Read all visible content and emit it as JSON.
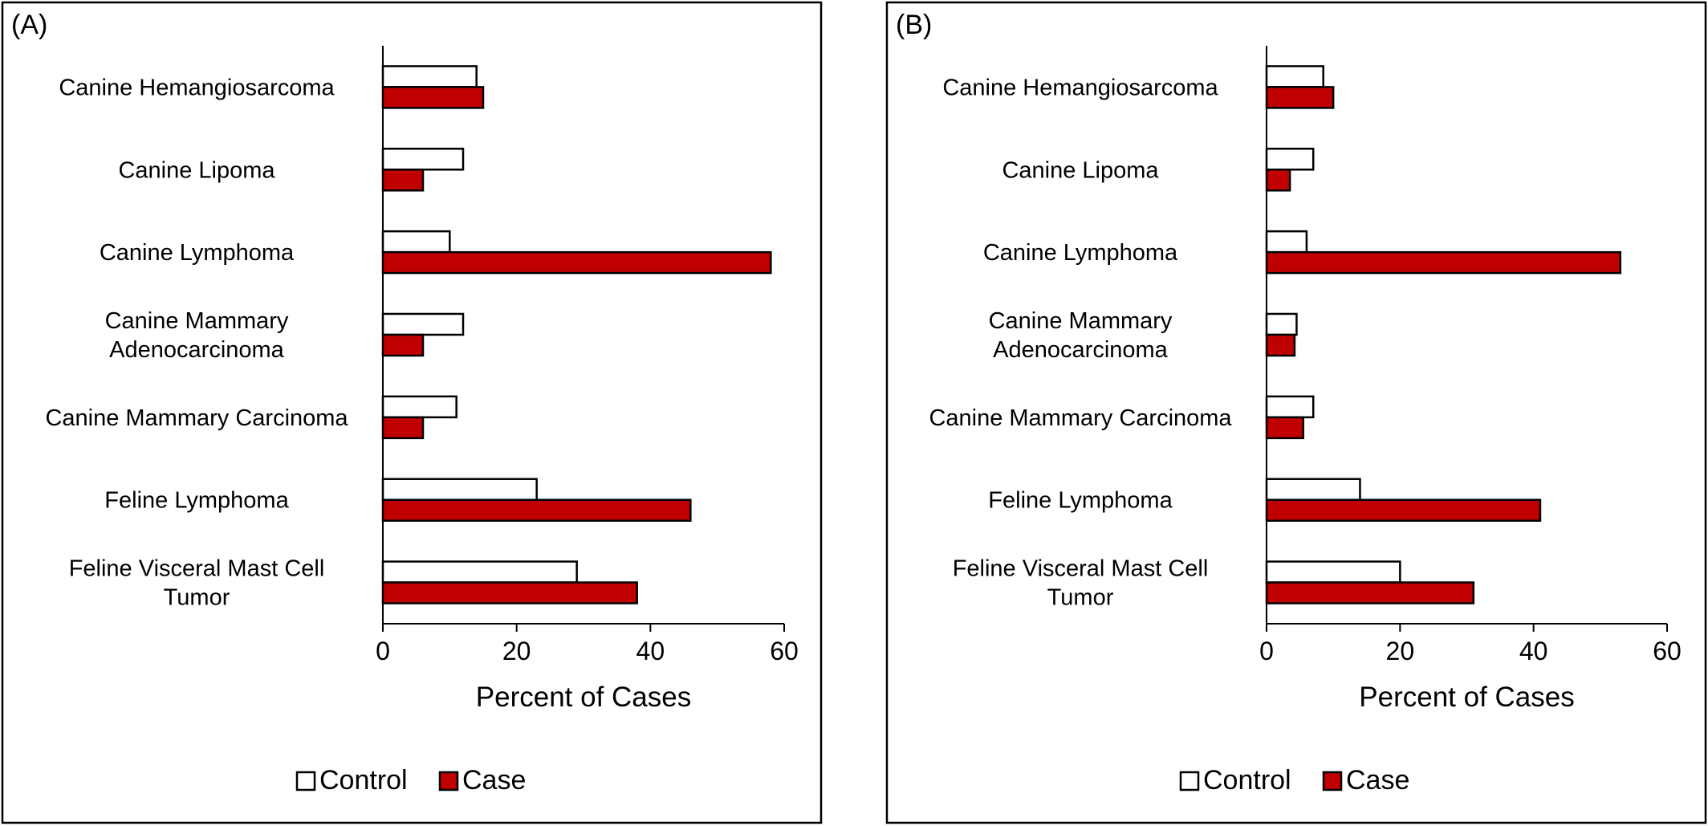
{
  "chart_data": [
    {
      "type": "bar",
      "orientation": "horizontal",
      "panel_label": "(A)",
      "categories": [
        [
          "Canine Hemangiosarcoma"
        ],
        [
          "Canine Lipoma"
        ],
        [
          "Canine Lymphoma"
        ],
        [
          "Canine Mammary",
          "Adenocarcinoma"
        ],
        [
          "Canine Mammary Carcinoma"
        ],
        [
          "Feline Lymphoma"
        ],
        [
          "Feline Visceral Mast Cell",
          "Tumor"
        ]
      ],
      "series": [
        {
          "name": "Control",
          "color": "#ffffff",
          "values": [
            14,
            12,
            10,
            12,
            11,
            23,
            29
          ]
        },
        {
          "name": "Case",
          "color": "#c00000",
          "values": [
            15,
            6,
            58,
            6,
            6,
            46,
            38
          ]
        }
      ],
      "xlabel": "Percent of Cases",
      "xlim": [
        0,
        60
      ],
      "xticks": [
        "0",
        "20",
        "40",
        "60"
      ],
      "grid": false,
      "legend_position": "bottom"
    },
    {
      "type": "bar",
      "orientation": "horizontal",
      "panel_label": "(B)",
      "categories": [
        [
          "Canine Hemangiosarcoma"
        ],
        [
          "Canine Lipoma"
        ],
        [
          "Canine Lymphoma"
        ],
        [
          "Canine Mammary",
          "Adenocarcinoma"
        ],
        [
          "Canine Mammary Carcinoma"
        ],
        [
          "Feline Lymphoma"
        ],
        [
          "Feline Visceral Mast Cell",
          "Tumor"
        ]
      ],
      "series": [
        {
          "name": "Control",
          "color": "#ffffff",
          "values": [
            8.5,
            7,
            6,
            4.5,
            7,
            14,
            20
          ]
        },
        {
          "name": "Case",
          "color": "#c00000",
          "values": [
            10,
            3.5,
            53,
            4.2,
            5.5,
            41,
            31
          ]
        }
      ],
      "xlabel": "Percent of Cases",
      "xlim": [
        0,
        60
      ],
      "xticks": [
        "0",
        "20",
        "40",
        "60"
      ],
      "grid": false,
      "legend_position": "bottom"
    }
  ]
}
